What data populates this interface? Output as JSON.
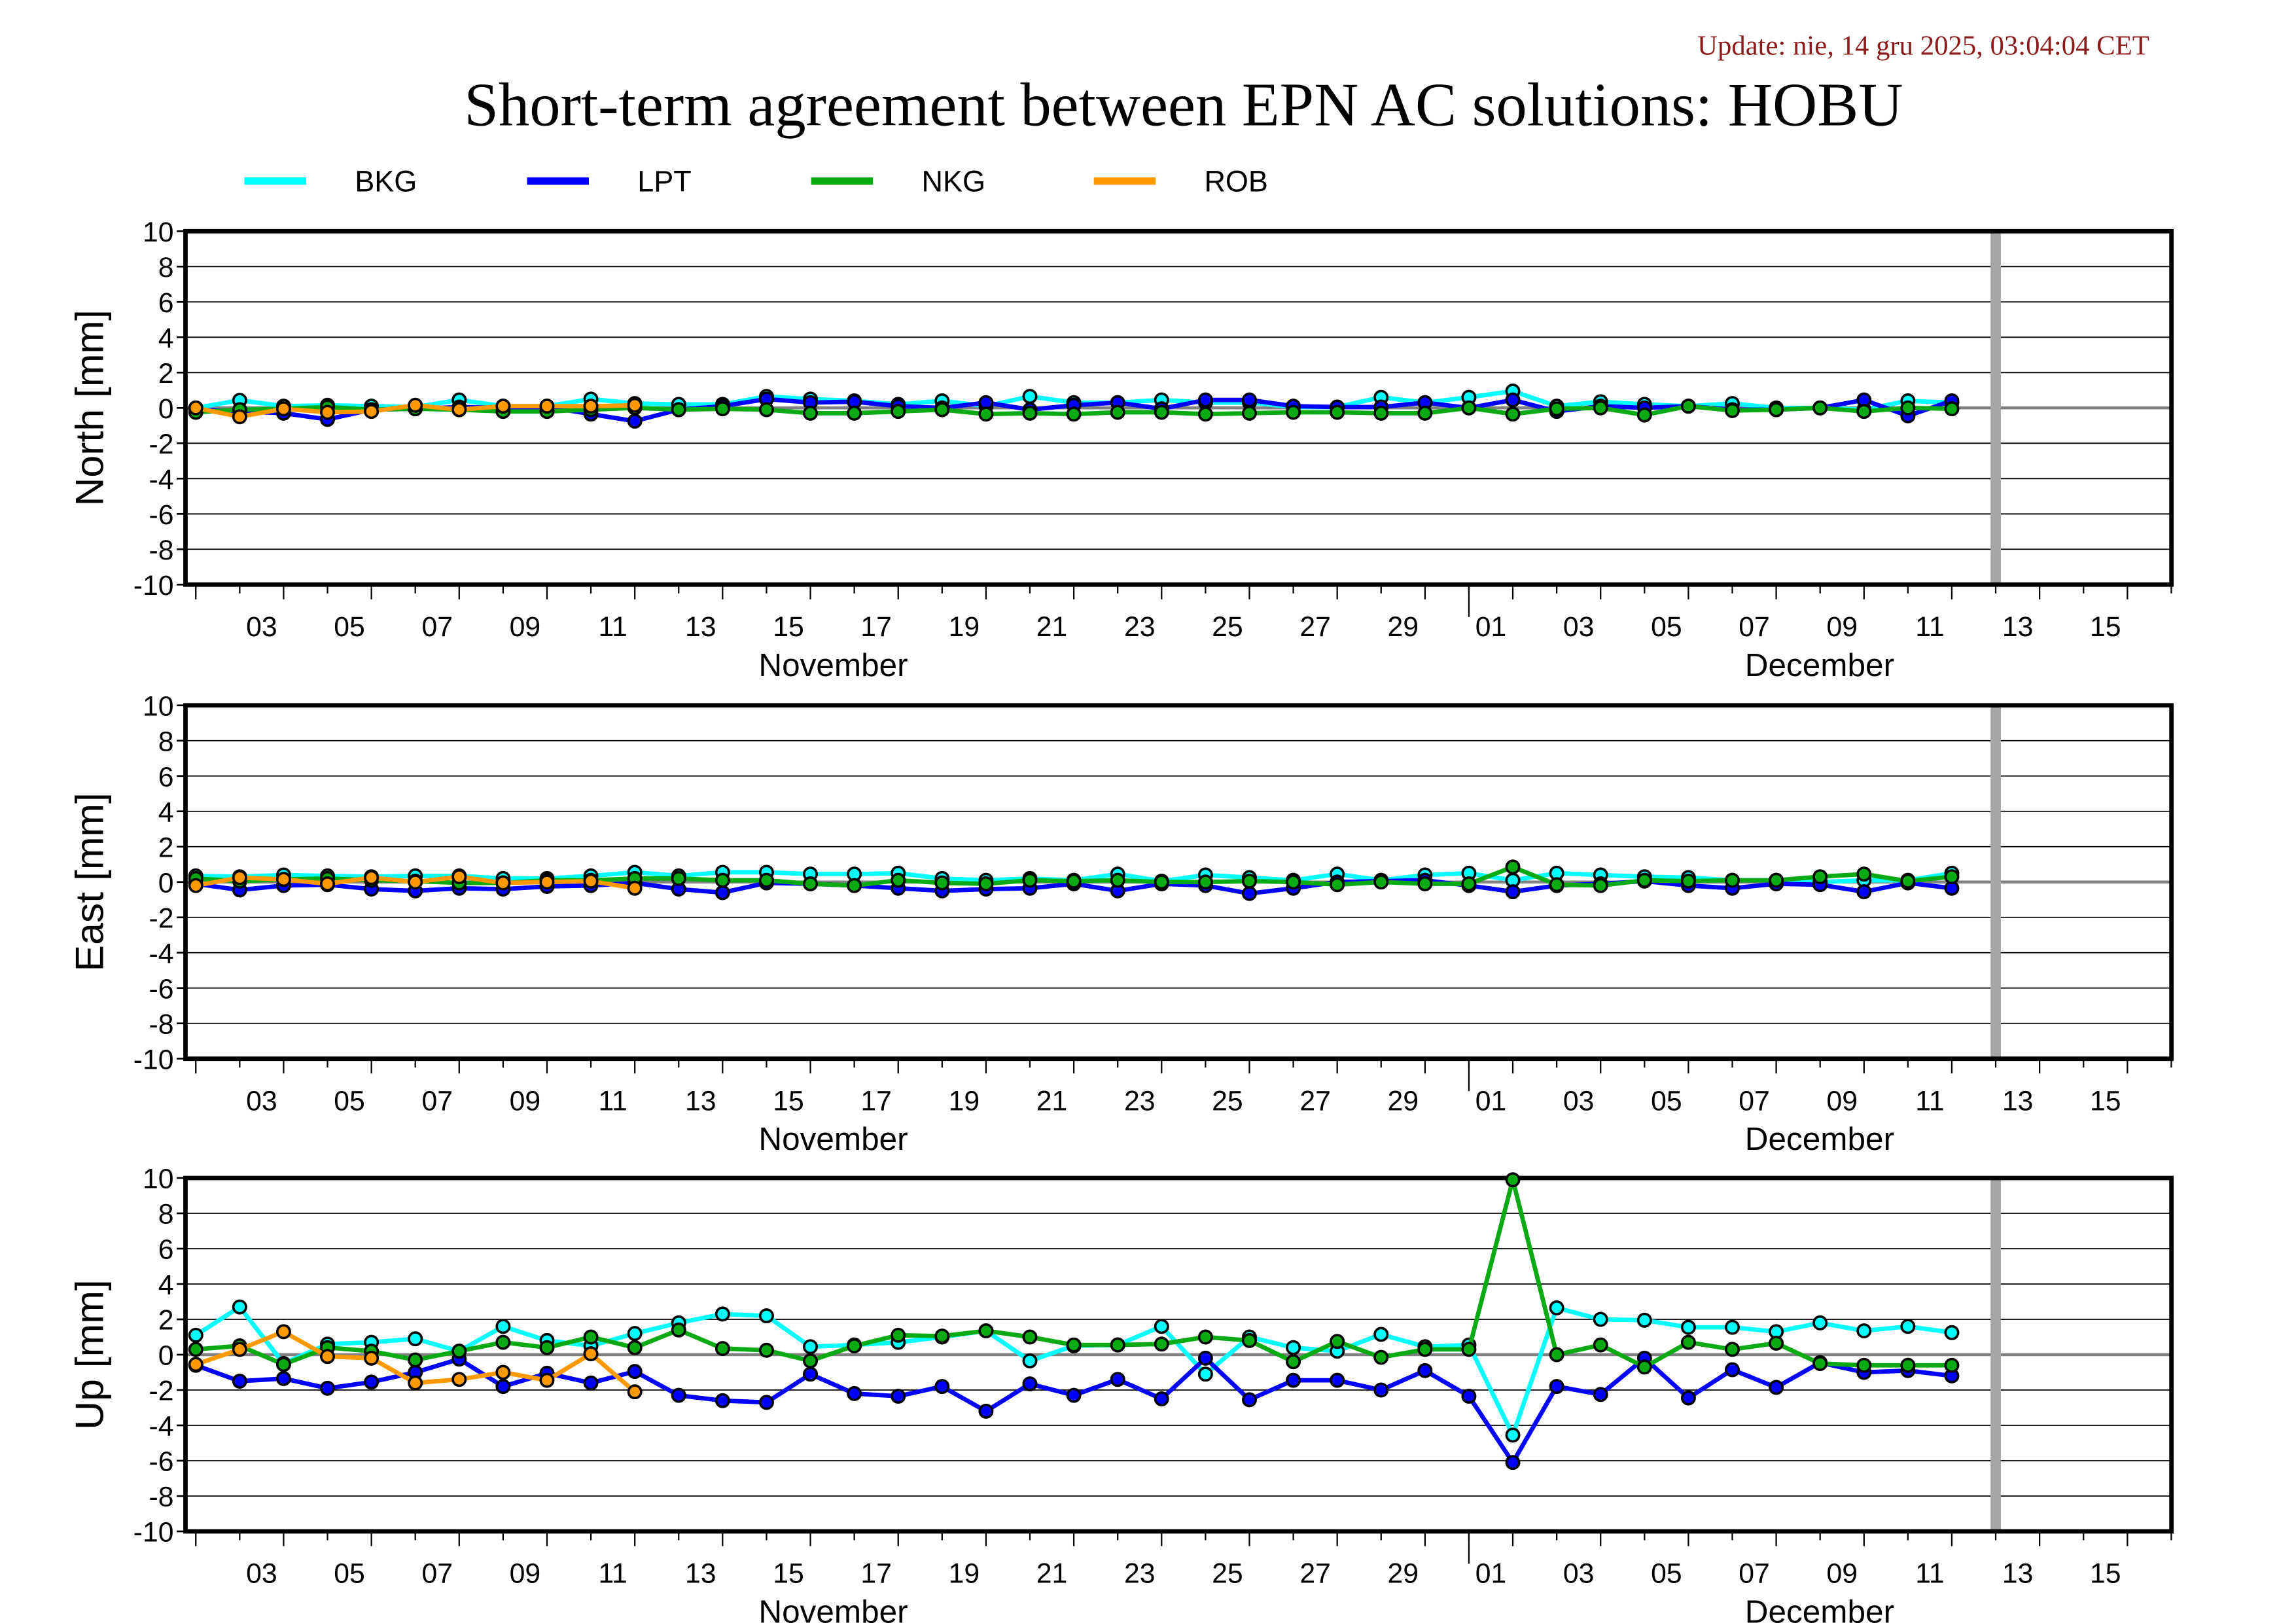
{
  "header": {
    "update": "Update: nie, 14 gru 2025, 03:04:04 CET",
    "title": "Short-term agreement between EPN AC solutions: HOBU"
  },
  "legend": [
    {
      "name": "BKG",
      "color": "#00ffff"
    },
    {
      "name": "LPT",
      "color": "#0000ff"
    },
    {
      "name": "NKG",
      "color": "#0aaa14"
    },
    {
      "name": "ROB",
      "color": "#ff9900"
    }
  ],
  "colors": {
    "zero_line": "#808080",
    "current_day_bar": "#a6a6a6",
    "marker_outline": "#000000",
    "update_text": "#8b1a1a"
  },
  "chart_data": [
    {
      "type": "line",
      "ylabel": "North [mm]",
      "ylim": [
        -10,
        10
      ],
      "yticks": [
        "10",
        "8",
        "6",
        "4",
        "2",
        "0",
        "-2",
        "-4",
        "-6",
        "-8",
        "-10"
      ],
      "x_start_date": "2025-11-02",
      "x_step": "1 day",
      "current_day_marker": "2025-12-13",
      "xtick_labels": [
        "03",
        "05",
        "07",
        "09",
        "11",
        "13",
        "15",
        "17",
        "19",
        "21",
        "23",
        "25",
        "27",
        "29",
        "01",
        "03",
        "05",
        "07",
        "09",
        "11",
        "13",
        "15"
      ],
      "month_labels": [
        "November",
        "December"
      ],
      "grid": true,
      "series": [
        {
          "name": "BKG",
          "values": [
            0,
            0.43,
            0.1,
            0.15,
            0.1,
            0.05,
            0.45,
            0.1,
            0.1,
            0.5,
            0.25,
            0.2,
            0.2,
            0.65,
            0.5,
            0.4,
            0.2,
            0.4,
            0.1,
            0.65,
            0.3,
            0.3,
            0.45,
            0.3,
            0.3,
            0.05,
            0.05,
            0.6,
            0.3,
            0.6,
            0.95,
            0.1,
            0.35,
            0.2,
            0.1,
            0.25,
            0,
            0,
            -0.1,
            0.4,
            0.3
          ]
        },
        {
          "name": "LPT",
          "values": [
            -0.1,
            -0.2,
            -0.3,
            -0.65,
            -0.1,
            -0.05,
            0.05,
            0,
            0.05,
            -0.35,
            -0.75,
            -0.1,
            0.1,
            0.5,
            0.3,
            0.35,
            0.1,
            0,
            0.3,
            -0.1,
            0.15,
            0.3,
            -0.05,
            0.45,
            0.45,
            0.1,
            0.05,
            0.05,
            0.3,
            0,
            0.45,
            -0.2,
            0.1,
            0,
            0.1,
            -0.1,
            -0.1,
            0,
            0.45,
            -0.45,
            0.4
          ]
        },
        {
          "name": "NKG",
          "values": [
            -0.25,
            -0.1,
            -0.05,
            0.05,
            -0.1,
            -0.05,
            -0.1,
            -0.2,
            -0.2,
            -0.1,
            0,
            -0.1,
            -0.05,
            -0.1,
            -0.3,
            -0.3,
            -0.2,
            -0.1,
            -0.35,
            -0.3,
            -0.35,
            -0.25,
            -0.25,
            -0.35,
            -0.3,
            -0.25,
            -0.25,
            -0.3,
            -0.3,
            0,
            -0.35,
            -0.05,
            0,
            -0.4,
            0.1,
            -0.15,
            -0.1,
            0,
            -0.2,
            0,
            -0.05
          ]
        },
        {
          "name": "ROB",
          "values": [
            0,
            -0.5,
            -0.05,
            -0.25,
            -0.2,
            0.15,
            -0.1,
            0.1,
            0.1,
            0.1,
            0.15
          ]
        }
      ]
    },
    {
      "type": "line",
      "ylabel": "East [mm]",
      "ylim": [
        -10,
        10
      ],
      "yticks": [
        "10",
        "8",
        "6",
        "4",
        "2",
        "0",
        "-2",
        "-4",
        "-6",
        "-8",
        "-10"
      ],
      "x_start_date": "2025-11-02",
      "x_step": "1 day",
      "current_day_marker": "2025-12-13",
      "xtick_labels": [
        "03",
        "05",
        "07",
        "09",
        "11",
        "13",
        "15",
        "17",
        "19",
        "21",
        "23",
        "25",
        "27",
        "29",
        "01",
        "03",
        "05",
        "07",
        "09",
        "11",
        "13",
        "15"
      ],
      "month_labels": [
        "November",
        "December"
      ],
      "grid": true,
      "series": [
        {
          "name": "BKG",
          "values": [
            0.35,
            0.3,
            0.4,
            0.35,
            0.3,
            0.35,
            0.35,
            0.2,
            0.2,
            0.35,
            0.55,
            0.35,
            0.55,
            0.55,
            0.45,
            0.45,
            0.5,
            0.2,
            0.1,
            0.2,
            0.1,
            0.45,
            0.05,
            0.4,
            0.25,
            0.1,
            0.45,
            0.1,
            0.4,
            0.5,
            0.1,
            0.5,
            0.4,
            0.3,
            0.25,
            0.1,
            0.1,
            0,
            0.1,
            0.1,
            0.5
          ]
        },
        {
          "name": "LPT",
          "values": [
            -0.1,
            -0.45,
            -0.2,
            -0.15,
            -0.4,
            -0.5,
            -0.35,
            -0.4,
            -0.25,
            -0.2,
            -0.05,
            -0.4,
            -0.6,
            -0.05,
            -0.1,
            -0.2,
            -0.35,
            -0.5,
            -0.4,
            -0.35,
            -0.1,
            -0.5,
            -0.1,
            -0.2,
            -0.65,
            -0.35,
            0,
            0.05,
            0.1,
            -0.2,
            -0.55,
            -0.2,
            -0.1,
            0.05,
            -0.2,
            -0.35,
            -0.1,
            -0.15,
            -0.55,
            -0.05,
            -0.35
          ]
        },
        {
          "name": "NKG",
          "values": [
            0.2,
            0.05,
            0.15,
            0.2,
            0.1,
            0.05,
            -0.05,
            -0.05,
            0.1,
            0.1,
            0.2,
            0.2,
            0.1,
            0.1,
            -0.1,
            -0.2,
            0.1,
            -0.05,
            -0.1,
            0.1,
            0.05,
            0.1,
            0,
            0,
            0.05,
            0,
            -0.15,
            0,
            -0.1,
            -0.1,
            0.85,
            -0.15,
            -0.2,
            0.1,
            0.05,
            0.1,
            0.1,
            0.3,
            0.45,
            0.05,
            0.3
          ]
        },
        {
          "name": "ROB",
          "values": [
            -0.2,
            0.25,
            0.15,
            -0.1,
            0.25,
            0,
            0.3,
            -0.05,
            0,
            0.05,
            -0.35
          ]
        }
      ]
    },
    {
      "type": "line",
      "ylabel": "Up [mm]",
      "ylim": [
        -10,
        10
      ],
      "yticks": [
        "10",
        "8",
        "6",
        "4",
        "2",
        "0",
        "-2",
        "-4",
        "-6",
        "-8",
        "-10"
      ],
      "x_start_date": "2025-11-02",
      "x_step": "1 day",
      "current_day_marker": "2025-12-13",
      "xtick_labels": [
        "03",
        "05",
        "07",
        "09",
        "11",
        "13",
        "15",
        "17",
        "19",
        "21",
        "23",
        "25",
        "27",
        "29",
        "01",
        "03",
        "05",
        "07",
        "09",
        "11",
        "13",
        "15"
      ],
      "month_labels": [
        "November",
        "December"
      ],
      "grid": true,
      "series": [
        {
          "name": "BKG",
          "values": [
            1.1,
            2.7,
            -0.5,
            0.6,
            0.7,
            0.9,
            0.2,
            1.6,
            0.8,
            0.5,
            1.2,
            1.8,
            2.3,
            2.2,
            0.45,
            0.55,
            0.7,
            1.0,
            1.35,
            -0.35,
            0.5,
            0.55,
            1.6,
            -1.1,
            1.0,
            0.4,
            0.2,
            1.15,
            0.45,
            0.55,
            -4.55,
            2.65,
            2.0,
            1.95,
            1.55,
            1.55,
            1.3,
            1.8,
            1.35,
            1.6,
            1.25
          ]
        },
        {
          "name": "LPT",
          "values": [
            -0.6,
            -1.5,
            -1.35,
            -1.9,
            -1.55,
            -1.0,
            -0.25,
            -1.8,
            -1.05,
            -1.6,
            -0.95,
            -2.3,
            -2.6,
            -2.7,
            -1.1,
            -2.2,
            -2.35,
            -1.8,
            -3.2,
            -1.65,
            -2.3,
            -1.4,
            -2.5,
            -0.2,
            -2.55,
            -1.45,
            -1.45,
            -2.0,
            -0.9,
            -2.35,
            -6.1,
            -1.8,
            -2.25,
            -0.2,
            -2.45,
            -0.85,
            -1.85,
            -0.45,
            -1.0,
            -0.9,
            -1.2
          ]
        },
        {
          "name": "NKG",
          "values": [
            0.3,
            0.5,
            -0.55,
            0.4,
            0.2,
            -0.3,
            0.2,
            0.7,
            0.4,
            1.0,
            0.4,
            1.4,
            0.35,
            0.25,
            -0.35,
            0.5,
            1.1,
            1.05,
            1.35,
            1.0,
            0.55,
            0.55,
            0.6,
            1.0,
            0.8,
            -0.4,
            0.75,
            -0.15,
            0.3,
            0.3,
            9.9,
            0,
            0.55,
            -0.7,
            0.7,
            0.3,
            0.65,
            -0.5,
            -0.6,
            -0.6,
            -0.6
          ]
        },
        {
          "name": "ROB",
          "values": [
            -0.55,
            0.3,
            1.3,
            -0.1,
            -0.2,
            -1.6,
            -1.4,
            -1.0,
            -1.45,
            0.05,
            -2.1
          ]
        }
      ]
    }
  ]
}
